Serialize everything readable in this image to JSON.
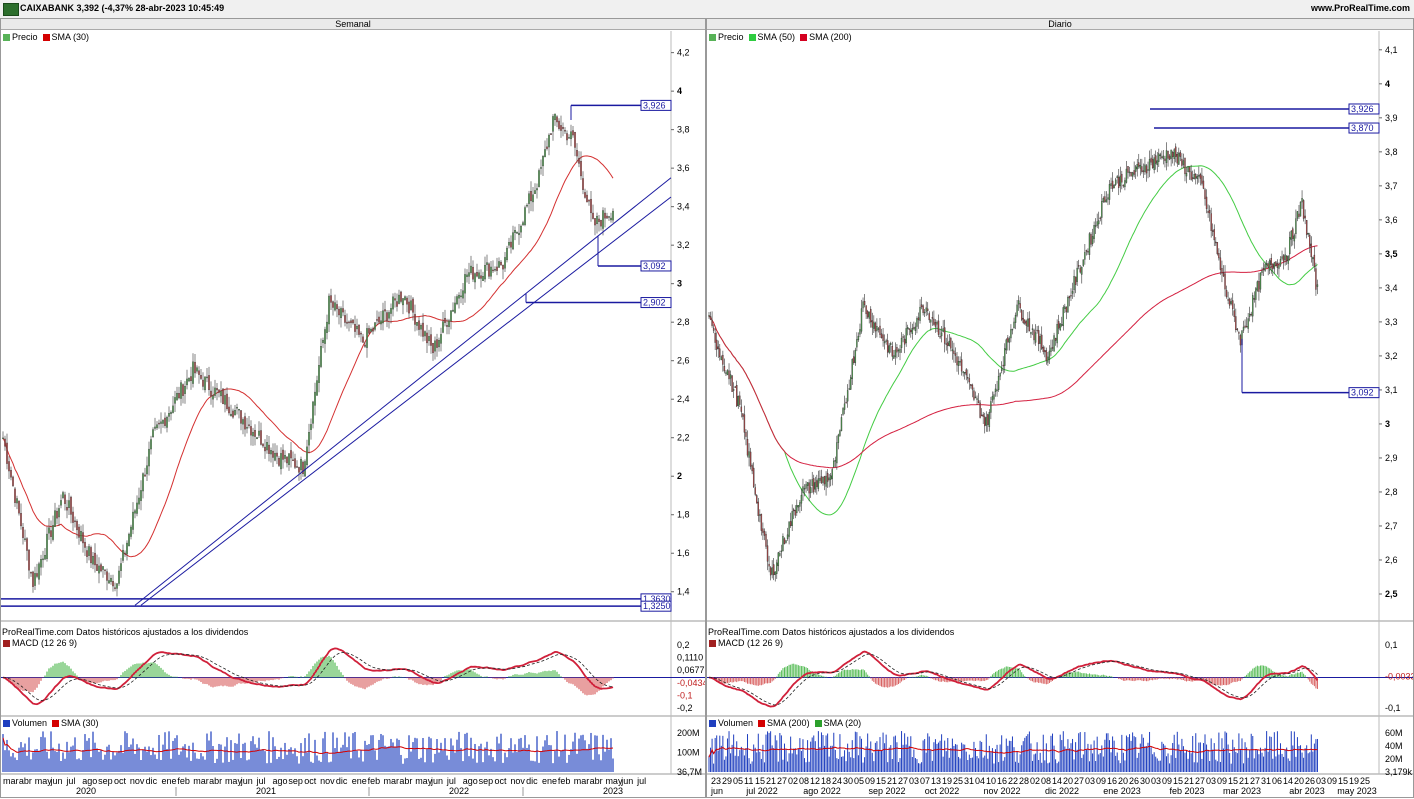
{
  "window": {
    "title": "CAIXABANK 3,392 (-4,37% 28-abr-2023 10:45:49",
    "site": "www.ProRealTime.com"
  },
  "left": {
    "header": "Semanal",
    "legend": [
      {
        "label": "Precio",
        "color": "#57b257"
      },
      {
        "label": "SMA (30)",
        "color": "#d40000"
      }
    ],
    "note": "ProRealTime.com Datos históricos ajustados a los dividendos",
    "macd_label": "MACD (12 26 9)",
    "volume_legend": [
      {
        "label": "Volumen",
        "color": "#1f3fbf"
      },
      {
        "label": "SMA (30)",
        "color": "#d40000"
      }
    ],
    "price_ticks": [
      "4,2",
      "4",
      "3,8",
      "3,6",
      "3,4",
      "3,2",
      "3",
      "2,8",
      "2,6",
      "2,4",
      "2,2",
      "2",
      "1,8",
      "1,6",
      "1,4"
    ],
    "levels": [
      "3,926",
      "3,092",
      "2,902",
      "1,3630",
      "1,3250"
    ],
    "macd_ticks": [
      "0,2",
      "0,1110",
      "0,0677",
      "-0,0434",
      "-0,1",
      "-0,2"
    ],
    "vol_ticks": [
      "200M",
      "100M",
      "36,7M"
    ],
    "x_months": [
      "mar",
      "abr",
      "may",
      "jun",
      "jul",
      "ago",
      "sep",
      "oct",
      "nov",
      "dic",
      "ene",
      "feb",
      "mar",
      "abr",
      "may",
      "jun",
      "jul",
      "ago",
      "sep",
      "oct",
      "nov",
      "dic",
      "ene",
      "feb",
      "mar",
      "abr",
      "may",
      "jun",
      "jul",
      "ago",
      "sep",
      "oct",
      "nov",
      "dic",
      "ene",
      "feb",
      "mar",
      "abr",
      "may",
      "jun",
      "jul"
    ],
    "x_years": [
      "2020",
      "2021",
      "2022",
      "2023"
    ]
  },
  "right": {
    "header": "Diario",
    "legend": [
      {
        "label": "Precio",
        "color": "#57b257"
      },
      {
        "label": "SMA (50)",
        "color": "#2ecc40"
      },
      {
        "label": "SMA (200)",
        "color": "#d40020"
      }
    ],
    "note": "ProRealTime.com Datos históricos ajustados a los dividendos",
    "macd_label": "MACD (12 26 9)",
    "volume_legend": [
      {
        "label": "Volumen",
        "color": "#1f3fbf"
      },
      {
        "label": "SMA (200)",
        "color": "#d40000"
      },
      {
        "label": "SMA (20)",
        "color": "#2ca02c"
      }
    ],
    "price_ticks": [
      "4,1",
      "4",
      "3,9",
      "3,8",
      "3,7",
      "3,6",
      "3,5",
      "3,4",
      "3,3",
      "3,2",
      "3,1",
      "3",
      "2,9",
      "2,8",
      "2,7",
      "2,6",
      "2,5"
    ],
    "levels": [
      "3,926",
      "3,870",
      "3,092"
    ],
    "macd_ticks": [
      "0,1",
      "-0,0033",
      "-0,1"
    ],
    "vol_ticks": [
      "60M",
      "40M",
      "20M",
      "3,179k"
    ],
    "x_days": [
      "23",
      "29",
      "05",
      "11",
      "15",
      "21",
      "27",
      "02",
      "08",
      "12",
      "18",
      "24",
      "30",
      "05",
      "09",
      "15",
      "21",
      "27",
      "03",
      "07",
      "13",
      "19",
      "25",
      "31",
      "04",
      "10",
      "16",
      "22",
      "28",
      "02",
      "08",
      "14",
      "20",
      "27",
      "03",
      "09",
      "16",
      "20",
      "26",
      "30",
      "03",
      "09",
      "15",
      "21",
      "27",
      "03",
      "09",
      "15",
      "21",
      "27",
      "31",
      "06",
      "14",
      "20",
      "26",
      "03",
      "09",
      "15",
      "19",
      "25"
    ],
    "x_months": [
      "jun",
      "jul 2022",
      "ago 2022",
      "sep 2022",
      "oct 2022",
      "nov 2022",
      "dic 2022",
      "ene 2023",
      "feb 2023",
      "mar 2023",
      "abr 2023",
      "may 2023"
    ]
  },
  "chart_data": [
    {
      "type": "candlestick",
      "title": "Semanal",
      "series": [
        {
          "name": "Precio"
        },
        {
          "name": "SMA (30)"
        }
      ],
      "ylim": [
        1.3,
        4.25
      ],
      "approx_close": [
        [
          0,
          2.2
        ],
        [
          15,
          1.45
        ],
        [
          30,
          1.9
        ],
        [
          45,
          1.55
        ],
        [
          57,
          1.45
        ],
        [
          75,
          2.2
        ],
        [
          95,
          2.55
        ],
        [
          115,
          2.35
        ],
        [
          138,
          2.1
        ],
        [
          150,
          2.05
        ],
        [
          163,
          2.9
        ],
        [
          180,
          2.7
        ],
        [
          200,
          2.95
        ],
        [
          215,
          2.65
        ],
        [
          232,
          3.05
        ],
        [
          250,
          3.1
        ],
        [
          268,
          3.55
        ],
        [
          275,
          3.85
        ],
        [
          285,
          3.75
        ],
        [
          295,
          3.3
        ],
        [
          305,
          3.39
        ]
      ]
    },
    {
      "type": "candlestick",
      "title": "Diario",
      "series": [
        {
          "name": "Precio"
        },
        {
          "name": "SMA (50)"
        },
        {
          "name": "SMA (200)"
        }
      ],
      "ylim": [
        2.45,
        4.12
      ],
      "approx_close": [
        [
          0,
          3.3
        ],
        [
          20,
          3.05
        ],
        [
          40,
          2.55
        ],
        [
          60,
          2.8
        ],
        [
          80,
          2.85
        ],
        [
          100,
          3.35
        ],
        [
          120,
          3.2
        ],
        [
          140,
          3.35
        ],
        [
          160,
          3.2
        ],
        [
          180,
          3.0
        ],
        [
          200,
          3.35
        ],
        [
          220,
          3.2
        ],
        [
          240,
          3.45
        ],
        [
          260,
          3.7
        ],
        [
          280,
          3.75
        ],
        [
          300,
          3.8
        ],
        [
          320,
          3.7
        ],
        [
          335,
          3.4
        ],
        [
          345,
          3.25
        ],
        [
          360,
          3.45
        ],
        [
          375,
          3.5
        ],
        [
          385,
          3.65
        ],
        [
          395,
          3.39
        ]
      ]
    }
  ]
}
